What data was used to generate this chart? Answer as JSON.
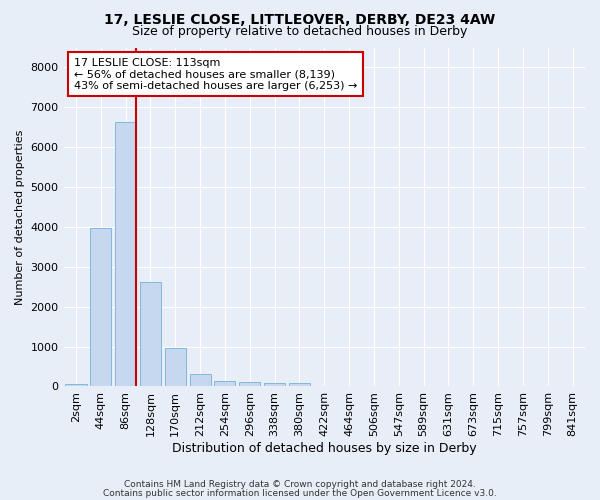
{
  "title_line1": "17, LESLIE CLOSE, LITTLEOVER, DERBY, DE23 4AW",
  "title_line2": "Size of property relative to detached houses in Derby",
  "xlabel": "Distribution of detached houses by size in Derby",
  "ylabel": "Number of detached properties",
  "bar_color": "#c5d8f0",
  "bar_edge_color": "#7aafd4",
  "bar_categories": [
    "2sqm",
    "44sqm",
    "86sqm",
    "128sqm",
    "170sqm",
    "212sqm",
    "254sqm",
    "296sqm",
    "338sqm",
    "380sqm",
    "422sqm",
    "464sqm",
    "506sqm",
    "547sqm",
    "589sqm",
    "631sqm",
    "673sqm",
    "715sqm",
    "757sqm",
    "799sqm",
    "841sqm"
  ],
  "bar_values": [
    70,
    3980,
    6620,
    2620,
    960,
    305,
    140,
    100,
    95,
    80,
    0,
    0,
    0,
    0,
    0,
    0,
    0,
    0,
    0,
    0,
    0
  ],
  "ylim": [
    0,
    8500
  ],
  "yticks": [
    0,
    1000,
    2000,
    3000,
    4000,
    5000,
    6000,
    7000,
    8000
  ],
  "property_line_color": "#cc0000",
  "annotation_text": "17 LESLIE CLOSE: 113sqm\n← 56% of detached houses are smaller (8,139)\n43% of semi-detached houses are larger (6,253) →",
  "annotation_box_edgecolor": "#cc0000",
  "footnote1": "Contains HM Land Registry data © Crown copyright and database right 2024.",
  "footnote2": "Contains public sector information licensed under the Open Government Licence v3.0.",
  "background_color": "#e8eef8",
  "grid_color": "#ffffff",
  "fig_width": 6.0,
  "fig_height": 5.0
}
